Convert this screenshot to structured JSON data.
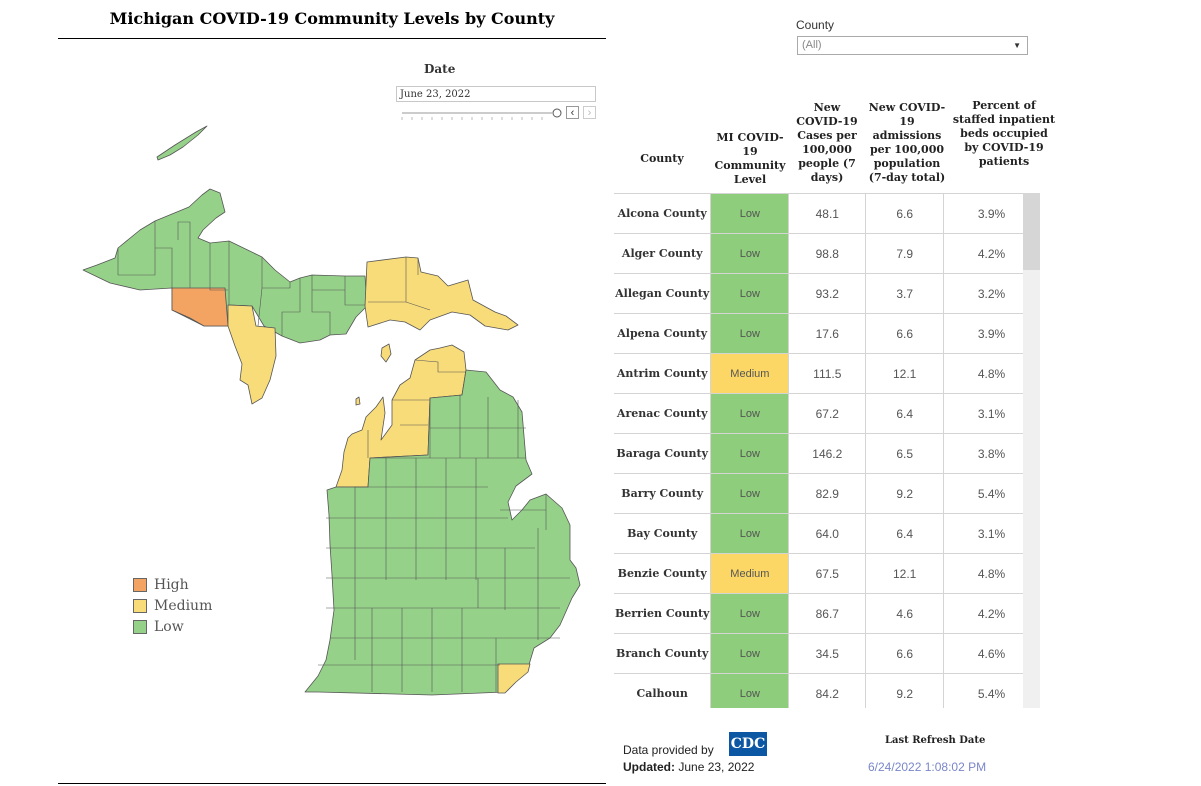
{
  "title": "Michigan COVID-19 Community Levels by County",
  "colors": {
    "high": "#f4a462",
    "medium": "#f9dc7a",
    "low": "#96d18a",
    "low_cell": "#8dcd7b",
    "medium_cell": "#fdd765"
  },
  "date_filter": {
    "label": "Date",
    "value": "June 23, 2022",
    "prev_icon": "chevron-left-icon",
    "next_icon": "chevron-right-icon"
  },
  "legend": [
    {
      "label": "High",
      "color": "#f4a462"
    },
    {
      "label": "Medium",
      "color": "#f9dc7a"
    },
    {
      "label": "Low",
      "color": "#96d18a"
    }
  ],
  "county_filter": {
    "label": "County",
    "value": "(All)"
  },
  "table": {
    "headers": {
      "county": "County",
      "level": "MI COVID-19 Community Level",
      "cases": "New COVID-19 Cases per 100,000 people (7 days)",
      "admissions": "New COVID-19 admissions per 100,000 population (7-day total)",
      "beds": "Percent of staffed inpatient beds occupied by COVID-19 patients"
    },
    "rows": [
      {
        "county": "Alcona County",
        "level": "Low",
        "cases": "48.1",
        "admissions": "6.6",
        "beds": "3.9%"
      },
      {
        "county": "Alger County",
        "level": "Low",
        "cases": "98.8",
        "admissions": "7.9",
        "beds": "4.2%"
      },
      {
        "county": "Allegan County",
        "level": "Low",
        "cases": "93.2",
        "admissions": "3.7",
        "beds": "3.2%"
      },
      {
        "county": "Alpena County",
        "level": "Low",
        "cases": "17.6",
        "admissions": "6.6",
        "beds": "3.9%"
      },
      {
        "county": "Antrim County",
        "level": "Medium",
        "cases": "111.5",
        "admissions": "12.1",
        "beds": "4.8%"
      },
      {
        "county": "Arenac County",
        "level": "Low",
        "cases": "67.2",
        "admissions": "6.4",
        "beds": "3.1%"
      },
      {
        "county": "Baraga County",
        "level": "Low",
        "cases": "146.2",
        "admissions": "6.5",
        "beds": "3.8%"
      },
      {
        "county": "Barry County",
        "level": "Low",
        "cases": "82.9",
        "admissions": "9.2",
        "beds": "5.4%"
      },
      {
        "county": "Bay County",
        "level": "Low",
        "cases": "64.0",
        "admissions": "6.4",
        "beds": "3.1%"
      },
      {
        "county": "Benzie County",
        "level": "Medium",
        "cases": "67.5",
        "admissions": "12.1",
        "beds": "4.8%"
      },
      {
        "county": "Berrien County",
        "level": "Low",
        "cases": "86.7",
        "admissions": "4.6",
        "beds": "4.2%"
      },
      {
        "county": "Branch County",
        "level": "Low",
        "cases": "34.5",
        "admissions": "6.6",
        "beds": "4.6%"
      },
      {
        "county": "Calhoun",
        "level": "Low",
        "cases": "84.2",
        "admissions": "9.2",
        "beds": "5.4%"
      }
    ]
  },
  "footer": {
    "data_provided_label": "Data provided by",
    "logo_text": "CDC",
    "updated_label": "Updated:",
    "updated_value": "June 23, 2022",
    "refresh_label": "Last Refresh Date",
    "refresh_value": "6/24/2022 1:08:02 PM"
  }
}
